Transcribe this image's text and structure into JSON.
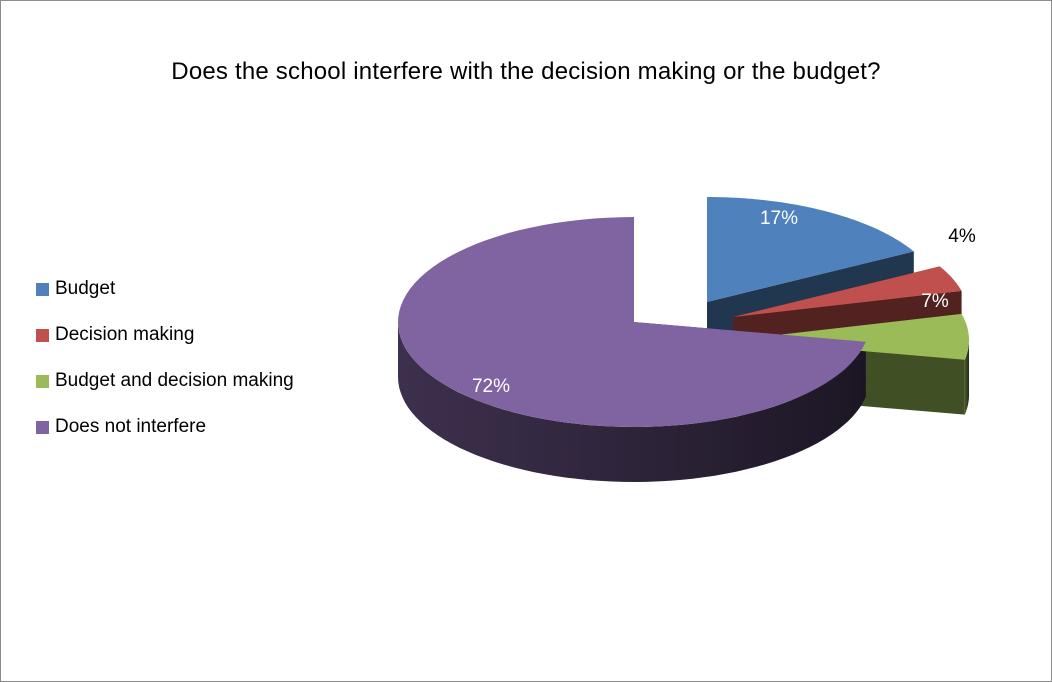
{
  "chart_data": {
    "type": "pie",
    "title": "Does the school interfere with the decision making or the budget?",
    "categories": [
      "Budget",
      "Decision making",
      "Budget and decision making",
      "Does not interfere"
    ],
    "values": [
      17,
      4,
      7,
      72
    ],
    "data_labels": [
      "17%",
      "4%",
      "7%",
      "72%"
    ],
    "colors": [
      "#4f81bd",
      "#c0504d",
      "#9bbb59",
      "#8064a2"
    ],
    "legend_position": "left",
    "style": "3d-exploded"
  }
}
